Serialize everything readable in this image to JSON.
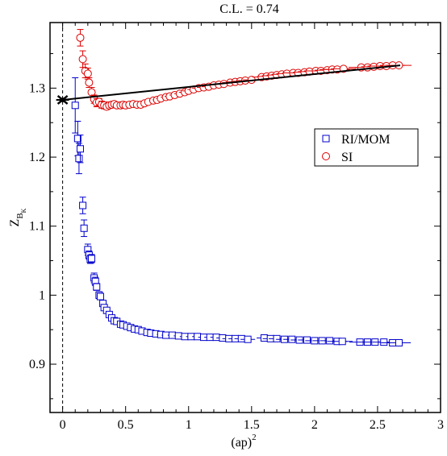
{
  "chart_data": {
    "type": "scatter",
    "title": "C.L. = 0.74",
    "xlabel": "(ap)",
    "xlabel_sup": "2",
    "ylabel": "Z",
    "ylabel_sub": "B",
    "ylabel_subsub": "K",
    "xlim": [
      -0.1,
      3.0
    ],
    "ylim": [
      0.83,
      1.395
    ],
    "x_ticks": [
      0,
      0.5,
      1,
      1.5,
      2,
      2.5,
      3
    ],
    "x_tick_labels": [
      "0",
      "0.5",
      "1",
      "1.5",
      "2",
      "2.5",
      "3"
    ],
    "y_ticks": [
      0.9,
      1.0,
      1.1,
      1.2,
      1.3
    ],
    "y_tick_labels": [
      "0.9",
      "1",
      "1.1",
      "1.2",
      "1.3"
    ],
    "grid": false,
    "legend_position": "right-upper",
    "colors": {
      "ri_mom": "#0000cc",
      "si": "#dd0000",
      "fit": "#000000",
      "extrapolated": "#000000"
    },
    "fit_line": {
      "x": [
        0.0,
        2.68
      ],
      "y": [
        1.283,
        1.333
      ]
    },
    "extrapolated_point": {
      "x": 0.0,
      "y": 1.283
    },
    "series": [
      {
        "name": "RI/MOM",
        "marker": "square",
        "x": [
          0.1,
          0.12,
          0.13,
          0.14,
          0.16,
          0.17,
          0.2,
          0.21,
          0.22,
          0.23,
          0.25,
          0.26,
          0.27,
          0.29,
          0.3,
          0.32,
          0.33,
          0.35,
          0.37,
          0.39,
          0.41,
          0.43,
          0.46,
          0.48,
          0.51,
          0.54,
          0.57,
          0.6,
          0.63,
          0.67,
          0.7,
          0.74,
          0.78,
          0.82,
          0.87,
          0.92,
          0.97,
          1.02,
          1.07,
          1.12,
          1.17,
          1.22,
          1.27,
          1.32,
          1.37,
          1.42,
          1.47,
          1.6,
          1.65,
          1.7,
          1.76,
          1.82,
          1.88,
          1.94,
          2.0,
          2.06,
          2.12,
          2.18,
          2.22,
          2.36,
          2.42,
          2.48,
          2.55,
          2.62,
          2.67
        ],
        "y": [
          1.275,
          1.227,
          1.198,
          1.212,
          1.13,
          1.097,
          1.066,
          1.058,
          1.052,
          1.053,
          1.025,
          1.02,
          1.012,
          1.0,
          0.998,
          0.988,
          0.982,
          0.978,
          0.972,
          0.967,
          0.963,
          0.962,
          0.958,
          0.957,
          0.955,
          0.953,
          0.951,
          0.95,
          0.948,
          0.946,
          0.945,
          0.944,
          0.943,
          0.942,
          0.942,
          0.941,
          0.94,
          0.94,
          0.94,
          0.939,
          0.939,
          0.939,
          0.938,
          0.937,
          0.937,
          0.937,
          0.936,
          0.938,
          0.937,
          0.937,
          0.936,
          0.936,
          0.935,
          0.935,
          0.934,
          0.934,
          0.934,
          0.933,
          0.933,
          0.932,
          0.932,
          0.932,
          0.932,
          0.931,
          0.931
        ],
        "err": [
          0.04,
          0.025,
          0.022,
          0.02,
          0.012,
          0.012,
          0.008,
          0.006,
          0.006,
          0.006,
          0.007,
          0.006,
          0.005,
          0.005,
          0.004,
          0.004,
          0.004,
          0.003,
          0.003,
          0.003,
          0.003,
          0.003,
          0.003,
          0.002,
          0.002,
          0.002,
          0.002,
          0.002,
          0.002,
          0.002,
          0.002,
          0.002,
          0.002,
          0.002,
          0.002,
          0.002,
          0.002,
          0.002,
          0.002,
          0.002,
          0.002,
          0.002,
          0.002,
          0.002,
          0.002,
          0.002,
          0.002,
          0.002,
          0.002,
          0.002,
          0.002,
          0.002,
          0.002,
          0.002,
          0.002,
          0.002,
          0.002,
          0.002,
          0.002,
          0.002,
          0.002,
          0.002,
          0.002,
          0.002,
          0.002
        ],
        "xerr": [
          0.01,
          0.01,
          0.01,
          0.01,
          0.01,
          0.01,
          0.01,
          0.01,
          0.01,
          0.01,
          0.01,
          0.01,
          0.01,
          0.01,
          0.01,
          0.012,
          0.012,
          0.012,
          0.014,
          0.014,
          0.016,
          0.016,
          0.018,
          0.018,
          0.02,
          0.02,
          0.022,
          0.022,
          0.024,
          0.026,
          0.028,
          0.03,
          0.032,
          0.034,
          0.036,
          0.038,
          0.04,
          0.04,
          0.042,
          0.044,
          0.046,
          0.048,
          0.05,
          0.052,
          0.054,
          0.056,
          0.058,
          0.06,
          0.062,
          0.064,
          0.066,
          0.068,
          0.07,
          0.072,
          0.074,
          0.076,
          0.078,
          0.08,
          0.082,
          0.084,
          0.086,
          0.088,
          0.09,
          0.092,
          0.094
        ]
      },
      {
        "name": "SI",
        "marker": "circle",
        "x": [
          0.14,
          0.16,
          0.18,
          0.2,
          0.21,
          0.23,
          0.25,
          0.27,
          0.29,
          0.31,
          0.33,
          0.35,
          0.37,
          0.39,
          0.41,
          0.43,
          0.46,
          0.48,
          0.5,
          0.53,
          0.56,
          0.59,
          0.62,
          0.65,
          0.68,
          0.72,
          0.75,
          0.78,
          0.82,
          0.85,
          0.89,
          0.93,
          0.97,
          1.0,
          1.04,
          1.08,
          1.12,
          1.16,
          1.2,
          1.24,
          1.28,
          1.33,
          1.37,
          1.41,
          1.45,
          1.5,
          1.58,
          1.62,
          1.66,
          1.7,
          1.74,
          1.78,
          1.83,
          1.87,
          1.92,
          1.96,
          2.01,
          2.05,
          2.1,
          2.14,
          2.18,
          2.23,
          2.37,
          2.42,
          2.47,
          2.52,
          2.57,
          2.62,
          2.67
        ],
        "y": [
          1.373,
          1.342,
          1.325,
          1.321,
          1.308,
          1.294,
          1.284,
          1.279,
          1.28,
          1.276,
          1.275,
          1.273,
          1.275,
          1.276,
          1.277,
          1.275,
          1.275,
          1.276,
          1.275,
          1.276,
          1.277,
          1.276,
          1.276,
          1.278,
          1.28,
          1.282,
          1.283,
          1.285,
          1.287,
          1.288,
          1.29,
          1.292,
          1.294,
          1.296,
          1.298,
          1.3,
          1.301,
          1.302,
          1.304,
          1.305,
          1.306,
          1.308,
          1.309,
          1.31,
          1.311,
          1.312,
          1.316,
          1.317,
          1.318,
          1.319,
          1.32,
          1.321,
          1.322,
          1.322,
          1.323,
          1.324,
          1.325,
          1.325,
          1.326,
          1.327,
          1.327,
          1.328,
          1.33,
          1.33,
          1.331,
          1.332,
          1.332,
          1.333,
          1.333
        ],
        "err": [
          0.012,
          0.012,
          0.01,
          0.008,
          0.007,
          0.007,
          0.006,
          0.006,
          0.005,
          0.005,
          0.005,
          0.004,
          0.004,
          0.004,
          0.003,
          0.003,
          0.003,
          0.003,
          0.003,
          0.003,
          0.003,
          0.003,
          0.003,
          0.002,
          0.002,
          0.002,
          0.002,
          0.002,
          0.002,
          0.002,
          0.002,
          0.002,
          0.002,
          0.002,
          0.002,
          0.002,
          0.002,
          0.002,
          0.002,
          0.002,
          0.002,
          0.002,
          0.002,
          0.002,
          0.002,
          0.002,
          0.002,
          0.002,
          0.002,
          0.002,
          0.002,
          0.002,
          0.002,
          0.002,
          0.002,
          0.002,
          0.002,
          0.002,
          0.002,
          0.002,
          0.002,
          0.002,
          0.002,
          0.002,
          0.002,
          0.002,
          0.002,
          0.002,
          0.002
        ],
        "xerr": [
          0.01,
          0.01,
          0.01,
          0.01,
          0.01,
          0.01,
          0.01,
          0.012,
          0.012,
          0.012,
          0.014,
          0.014,
          0.016,
          0.016,
          0.018,
          0.018,
          0.02,
          0.02,
          0.022,
          0.022,
          0.024,
          0.026,
          0.028,
          0.03,
          0.032,
          0.034,
          0.036,
          0.038,
          0.04,
          0.04,
          0.042,
          0.044,
          0.046,
          0.048,
          0.05,
          0.052,
          0.054,
          0.056,
          0.058,
          0.06,
          0.062,
          0.064,
          0.066,
          0.068,
          0.07,
          0.072,
          0.074,
          0.076,
          0.078,
          0.08,
          0.082,
          0.084,
          0.086,
          0.088,
          0.09,
          0.092,
          0.094,
          0.096,
          0.098,
          0.1,
          0.1,
          0.1,
          0.1,
          0.1,
          0.1,
          0.1,
          0.1,
          0.1,
          0.1
        ]
      }
    ]
  }
}
